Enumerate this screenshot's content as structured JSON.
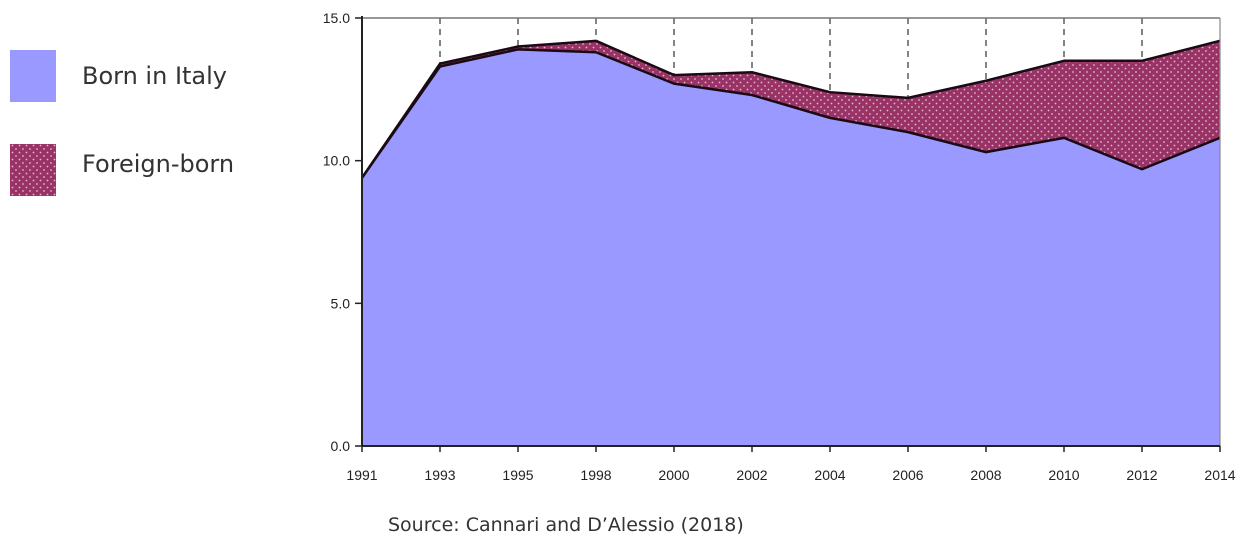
{
  "chart_data": {
    "type": "area",
    "stacked": true,
    "categories": [
      "1991",
      "1993",
      "1995",
      "1998",
      "2000",
      "2002",
      "2004",
      "2006",
      "2008",
      "2010",
      "2012",
      "2014"
    ],
    "series": [
      {
        "name": "Born in Italy",
        "color": "#9999ff",
        "values": [
          9.4,
          13.3,
          13.9,
          13.8,
          12.7,
          12.3,
          11.5,
          11.0,
          10.3,
          10.8,
          9.7,
          10.8
        ]
      },
      {
        "name": "Foreign-born",
        "color": "#993366",
        "values": [
          0.0,
          0.1,
          0.1,
          0.4,
          0.3,
          0.8,
          0.9,
          1.2,
          2.5,
          2.7,
          3.8,
          3.4
        ]
      }
    ],
    "ylim": [
      0,
      15
    ],
    "yticks": [
      "0.0",
      "5.0",
      "10.0",
      "15.0"
    ],
    "ytick_values": [
      0,
      5,
      10,
      15
    ],
    "grid": "vertical dashed",
    "legend_position": "left",
    "source": "Source: Cannari and D’Alessio (2018)"
  }
}
